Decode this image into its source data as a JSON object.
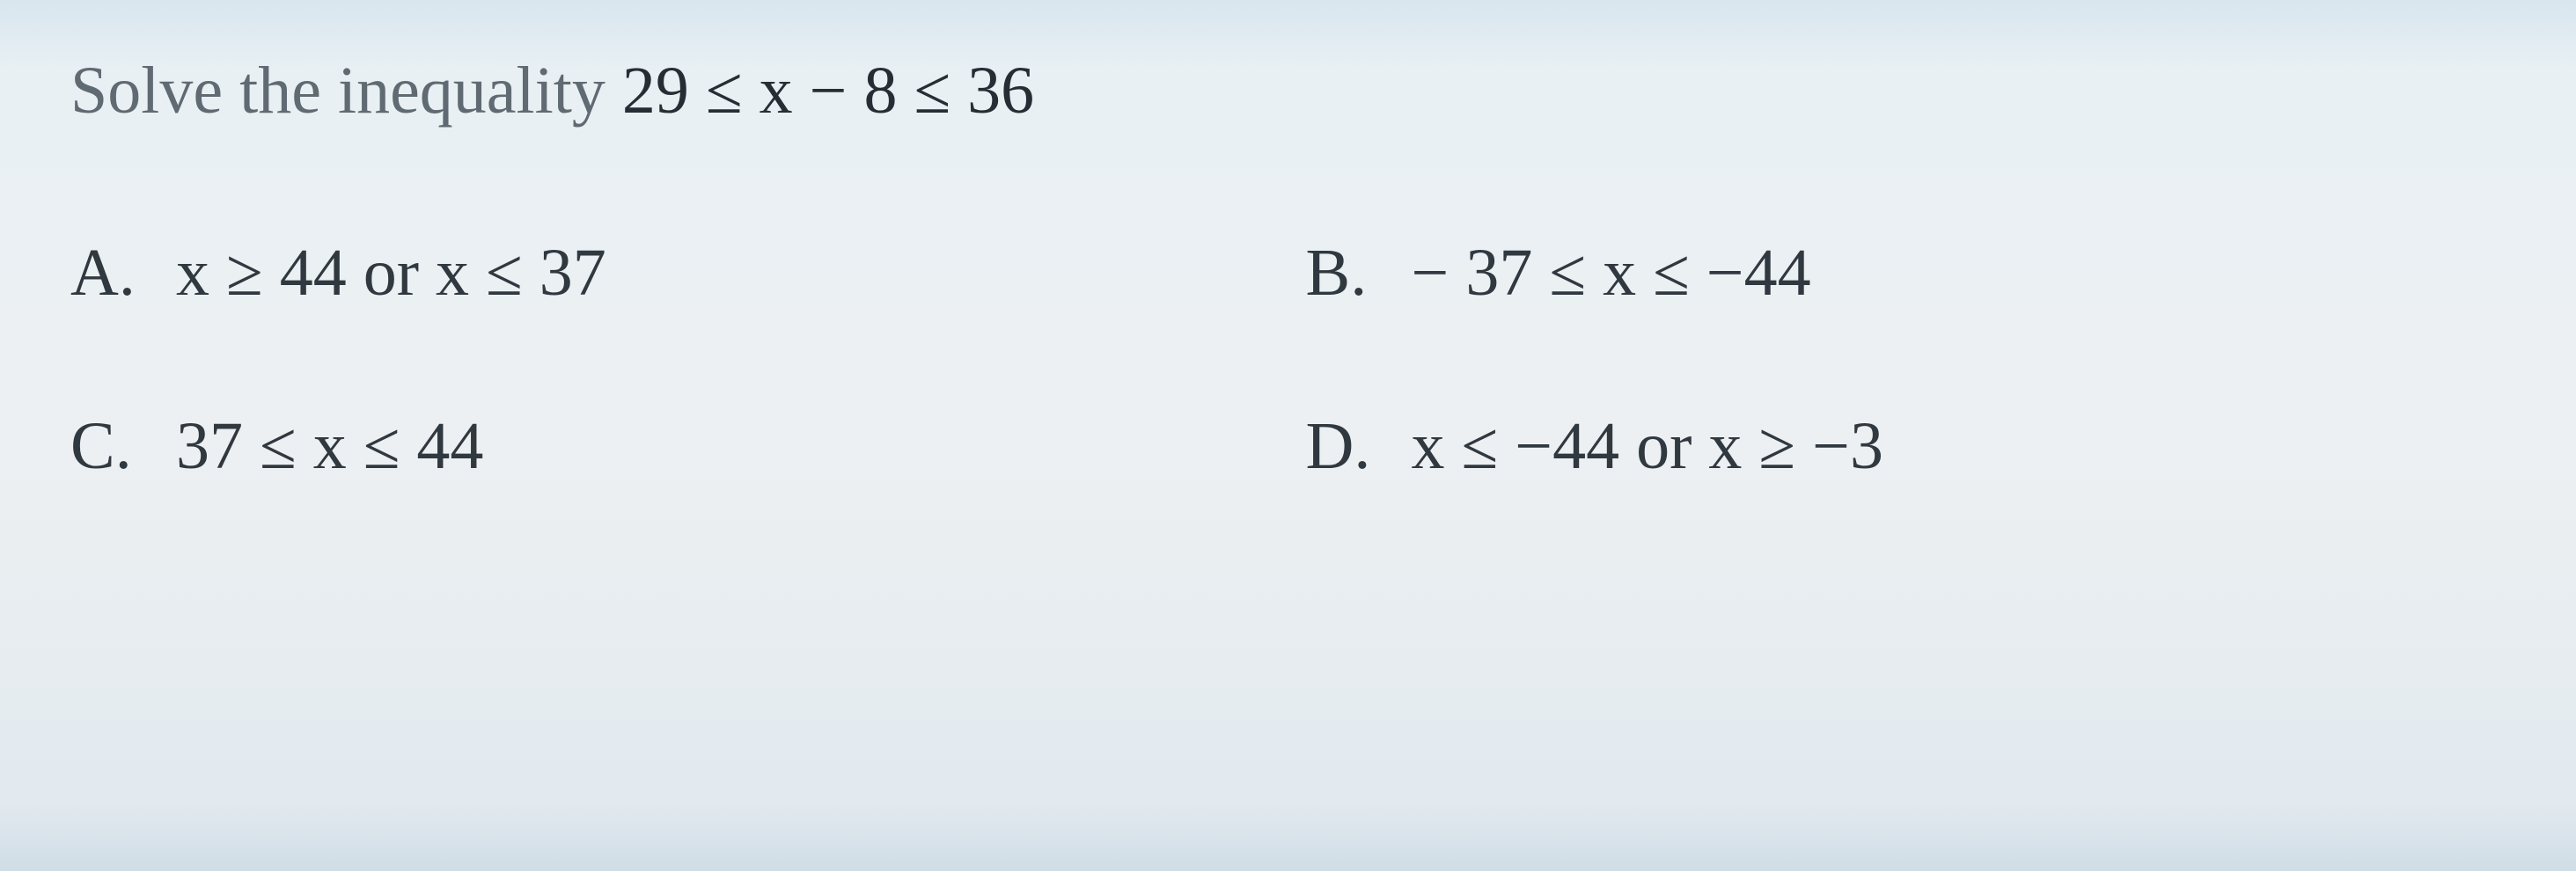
{
  "question": {
    "prompt_prefix": "Solve the inequality ",
    "math": "29 ≤ x − 8 ≤ 36"
  },
  "options": {
    "a": {
      "letter": "A.",
      "text_parts": [
        "x ≥ 44",
        " or ",
        "x ≤ 37"
      ]
    },
    "b": {
      "letter": "B.",
      "text_parts": [
        "− 37 ≤ x ≤ −44"
      ]
    },
    "c": {
      "letter": "C.",
      "text_parts": [
        "37 ≤ x ≤ 44"
      ]
    },
    "d": {
      "letter": "D.",
      "text_parts": [
        "x ≤ −44",
        " or ",
        "x ≥ −3"
      ]
    }
  },
  "styling": {
    "background_gradient_top": "#d8e6ee",
    "background_gradient_mid": "#edf0f2",
    "background_gradient_bottom": "#d0dde6",
    "text_color_prompt": "#606a72",
    "text_color_math": "#262e35",
    "text_color_options": "#303840",
    "font_family_body": "Georgia, 'Times New Roman', serif",
    "font_family_math": "'Times New Roman', serif",
    "font_size_question": 76,
    "font_size_options": 76,
    "row_gap": 110,
    "column_gap": 40
  }
}
